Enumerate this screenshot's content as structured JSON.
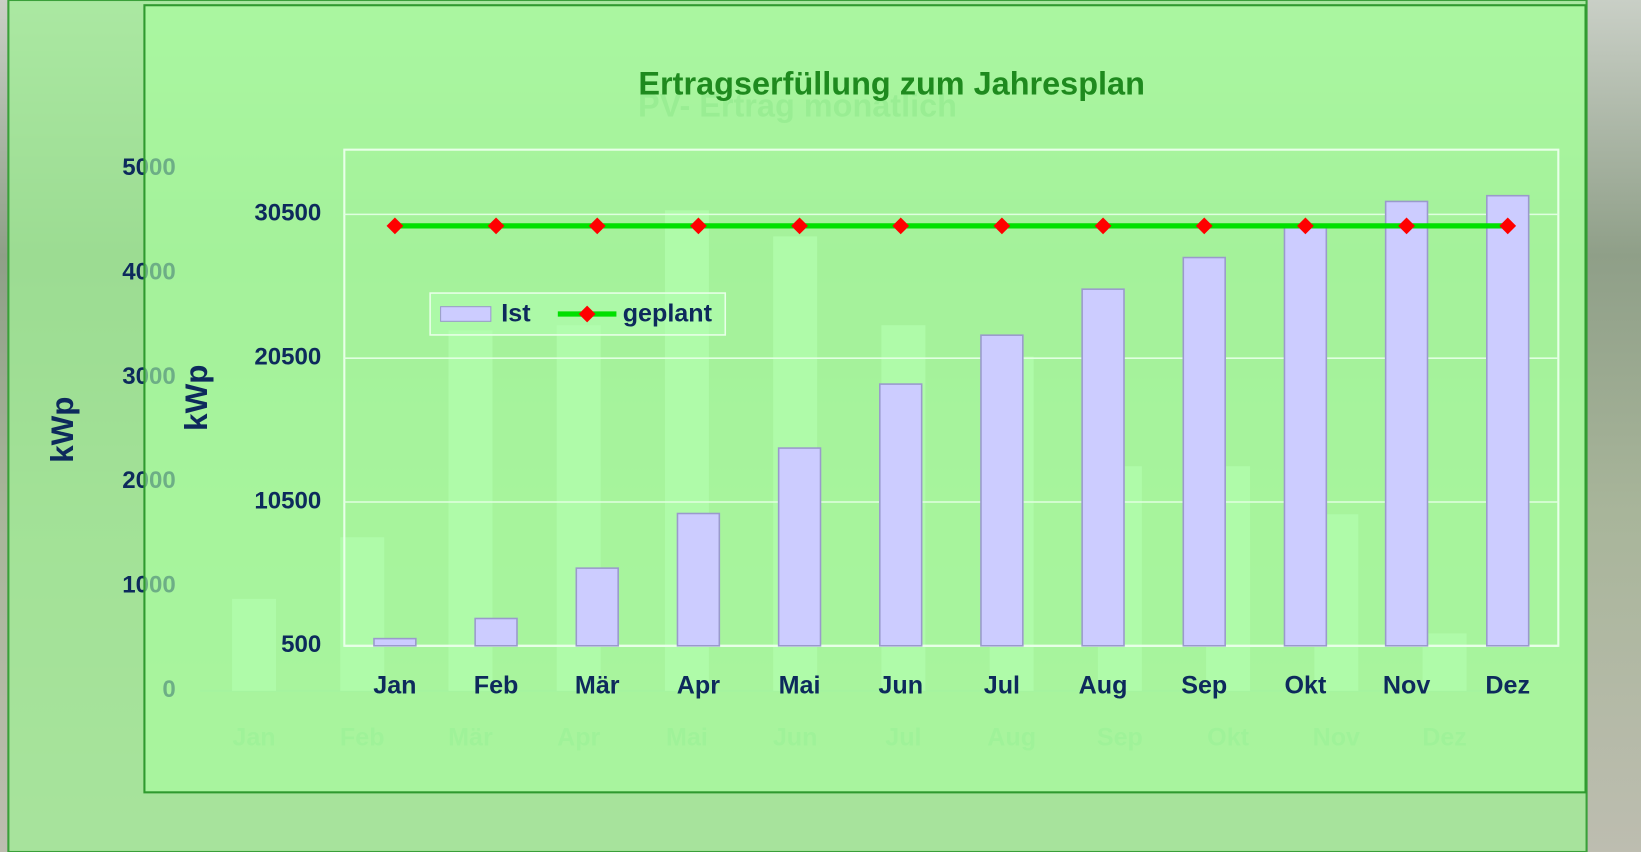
{
  "chart_data": [
    {
      "type": "bar",
      "title": "PV- Ertrag monatlich",
      "y_label": "kWp",
      "categories": [
        "Jan",
        "Feb",
        "Mär",
        "Apr",
        "Mai",
        "Jun",
        "Jul",
        "Aug",
        "Sep",
        "Okt",
        "Nov",
        "Dez"
      ],
      "values": [
        880,
        1470,
        3450,
        3500,
        4600,
        4350,
        3500,
        3200,
        2150,
        2150,
        1690,
        550
      ],
      "color": "#b8f5b8",
      "ylim": [
        0,
        5000
      ],
      "yticks": [
        0,
        1000,
        2000,
        3000,
        4000,
        5000
      ],
      "grid": false
    },
    {
      "type": "combo",
      "title": "Ertragserfüllung zum Jahresplan",
      "y_label": "kWp",
      "categories": [
        "Jan",
        "Feb",
        "Mär",
        "Apr",
        "Mai",
        "Jun",
        "Jul",
        "Aug",
        "Sep",
        "Okt",
        "Nov",
        "Dez"
      ],
      "series": [
        {
          "name": "Ist",
          "type": "bar",
          "color": "#ccccff",
          "values": [
            1000,
            2400,
            5900,
            9700,
            14250,
            18700,
            22100,
            25300,
            27500,
            29600,
            31400,
            31800
          ]
        },
        {
          "name": "geplant",
          "type": "line",
          "color": "#00e000",
          "marker_color": "#ff0000",
          "values": [
            29700,
            29700,
            29700,
            29700,
            29700,
            29700,
            29700,
            29700,
            29700,
            29700,
            29700,
            29700
          ]
        }
      ],
      "ylim": [
        500,
        35000
      ],
      "yticks": [
        500,
        10500,
        20500,
        30500
      ],
      "grid": true,
      "legend": "upper left"
    }
  ]
}
